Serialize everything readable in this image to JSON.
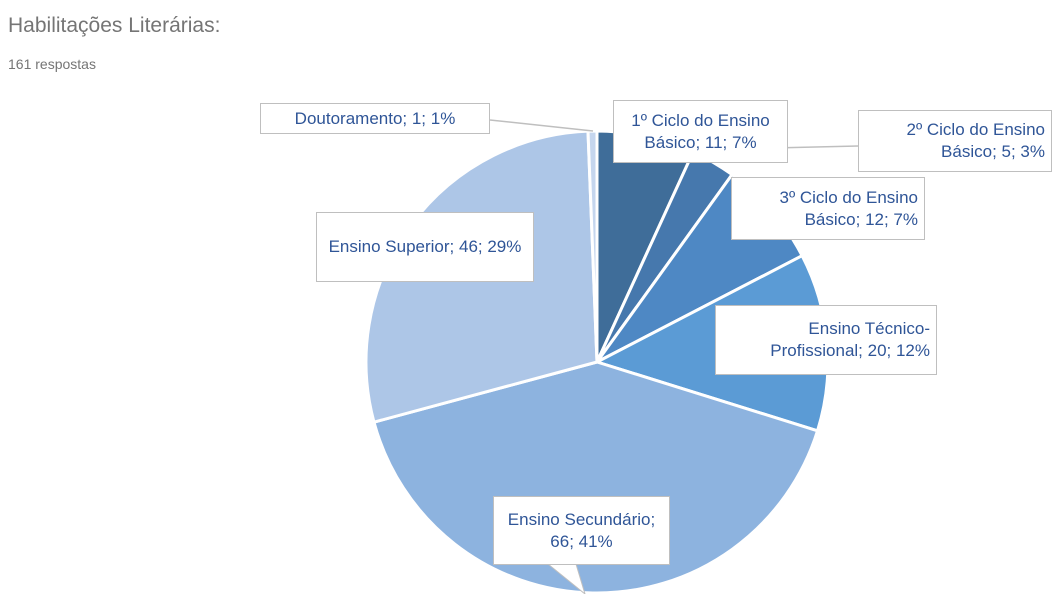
{
  "chart_data": {
    "type": "pie",
    "title": "Habilitações Literárias:",
    "subtitle": "161 respostas",
    "values": [
      11,
      5,
      12,
      20,
      66,
      46,
      1
    ],
    "value_labels": [
      "1º Ciclo do Ensino Básico; 11; 7%",
      "2º Ciclo do Ensino Básico; 5; 3%",
      "3º Ciclo do Ensino Básico; 12; 7%",
      "Ensino Técnico-Profissional; 20; 12%",
      "Ensino Secundário; 66; 41%",
      "Ensino Superior; 46; 29%",
      "Doutoramento; 1; 1%"
    ],
    "colors": [
      "#3f6d99",
      "#4678ad",
      "#4e88c4",
      "#5b9bd5",
      "#8db3df",
      "#adc6e7",
      "#c5d6ee"
    ]
  }
}
